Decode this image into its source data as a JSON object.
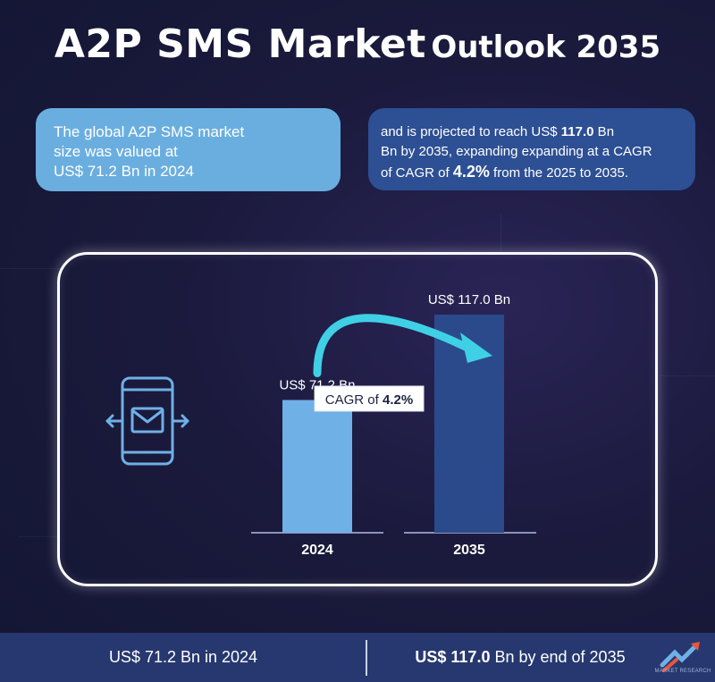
{
  "title": {
    "main": "A2P SMS Market",
    "sub": "Outlook 2035"
  },
  "left_box": {
    "line1": "The global A2P SMS market",
    "line2": "size was valued at",
    "line3": "US$ 71.2 Bn in 2024"
  },
  "right_box": {
    "line1_pre": "and is projected to reach US$ ",
    "line1_bold": "117.0",
    "line1_post": " Bn",
    "line2": "Bn by 2035, expanding expanding at a CAGR",
    "line3_pre": "of CAGR of ",
    "line3_bold": "4.2%",
    "line3_post": "  from the 2025 to 2035."
  },
  "chart_data": {
    "type": "bar",
    "categories": [
      "2024",
      "2035"
    ],
    "values": [
      71.2,
      117.0
    ],
    "value_labels": [
      "US$ 71,2 Bn",
      "US$ 117.0 Bn"
    ],
    "colors": [
      "#6fb0e6",
      "#2b4a8c"
    ],
    "unit": "US$ Bn",
    "annotation": {
      "prefix": "CAGR of ",
      "value": "4.2%"
    },
    "arrow_color": "#3fd0e6"
  },
  "footer": {
    "left": "US$ 71.2 Bn in 2024",
    "right_bold": "US$ 117.0",
    "right_rest": " Bn by end of 2035"
  },
  "logo": {
    "text": "MARKET RESEARCH",
    "icon": "market-research-logo-icon"
  },
  "phone_icon": "sms-phone-icon"
}
